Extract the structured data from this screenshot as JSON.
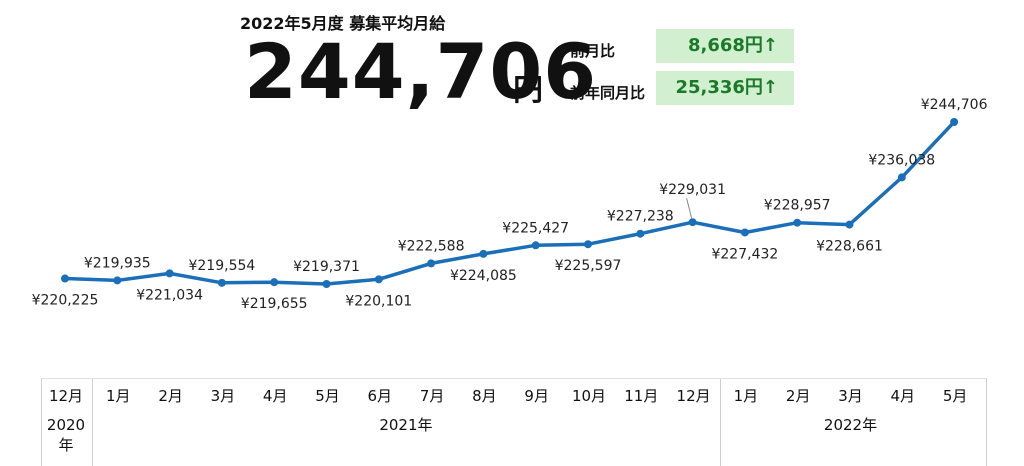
{
  "header": {
    "title": "2022年5月度 募集平均月給",
    "value": "244,706",
    "unit": "円"
  },
  "comparison": [
    {
      "label": "前月比",
      "value": "8,668円↑"
    },
    {
      "label": "前年同月比",
      "value": "25,336円↑"
    }
  ],
  "colors": {
    "line": "#1a6fb8",
    "badge_bg": "#d2f0d0",
    "badge_text": "#1a7a2a"
  },
  "chart_data": {
    "type": "line",
    "title": "",
    "categories": [
      "12月",
      "1月",
      "2月",
      "3月",
      "4月",
      "5月",
      "6月",
      "7月",
      "8月",
      "9月",
      "10月",
      "11月",
      "12月",
      "1月",
      "2月",
      "3月",
      "4月",
      "5月"
    ],
    "values": [
      220225,
      219935,
      221034,
      219554,
      219655,
      219371,
      220101,
      222588,
      224085,
      225427,
      225597,
      227238,
      229031,
      227432,
      228957,
      228661,
      236038,
      244706
    ],
    "labels": [
      "¥220,225",
      "¥219,935",
      "¥221,034",
      "¥219,554",
      "¥219,655",
      "¥219,371",
      "¥220,101",
      "¥222,588",
      "¥224,085",
      "¥225,427",
      "¥225,597",
      "¥227,238",
      "¥229,031",
      "¥227,432",
      "¥228,957",
      "¥228,661",
      "¥236,038",
      "¥244,706"
    ],
    "label_position": [
      "below",
      "above",
      "below",
      "above",
      "below",
      "above",
      "below",
      "above",
      "below",
      "above",
      "below",
      "above",
      "above",
      "below",
      "above",
      "below",
      "above",
      "above"
    ],
    "year_groups": [
      {
        "label": "2020\n年",
        "from": 0,
        "to": 0
      },
      {
        "label": "2021年",
        "from": 1,
        "to": 12
      },
      {
        "label": "2022年",
        "from": 13,
        "to": 17
      }
    ]
  }
}
